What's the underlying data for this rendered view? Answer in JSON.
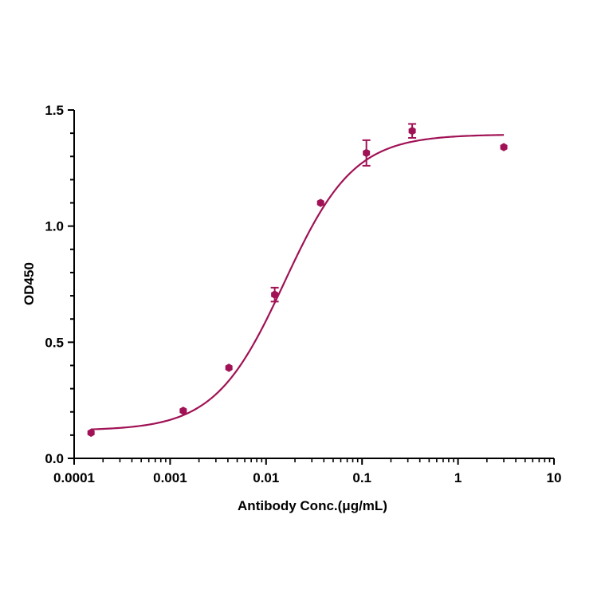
{
  "chart_data": {
    "type": "scatter",
    "title": "",
    "xlabel": "Antibody Conc.(μg/mL)",
    "ylabel": "OD450",
    "xscale": "log",
    "xlim": [
      0.0001,
      10
    ],
    "ylim": [
      0,
      1.5
    ],
    "x_ticks": [
      {
        "value": 0.0001,
        "label": "0.0001"
      },
      {
        "value": 0.001,
        "label": "0.001"
      },
      {
        "value": 0.01,
        "label": "0.01"
      },
      {
        "value": 0.1,
        "label": "0.1"
      },
      {
        "value": 1,
        "label": "1"
      },
      {
        "value": 10,
        "label": "10"
      }
    ],
    "y_ticks": [
      {
        "value": 0,
        "label": "0.0"
      },
      {
        "value": 0.5,
        "label": "0.5"
      },
      {
        "value": 1.0,
        "label": "1.0"
      },
      {
        "value": 1.5,
        "label": "1.5"
      }
    ],
    "grid": false,
    "color": "#a01255",
    "points": [
      {
        "x": 0.00015,
        "y": 0.11,
        "err": 0
      },
      {
        "x": 0.00137,
        "y": 0.205,
        "err": 0
      },
      {
        "x": 0.0041,
        "y": 0.39,
        "err": 0
      },
      {
        "x": 0.0123,
        "y": 0.705,
        "err": 0.03
      },
      {
        "x": 0.037,
        "y": 1.1,
        "err": 0
      },
      {
        "x": 0.111,
        "y": 1.315,
        "err": 0.055
      },
      {
        "x": 0.333,
        "y": 1.41,
        "err": 0.03
      },
      {
        "x": 3.0,
        "y": 1.34,
        "err": 0
      }
    ],
    "fit": {
      "model": "4PL",
      "bottom": 0.12,
      "top": 1.395,
      "ec50": 0.0155,
      "hill": 1.2,
      "x_range": [
        0.00015,
        3.0
      ]
    }
  }
}
